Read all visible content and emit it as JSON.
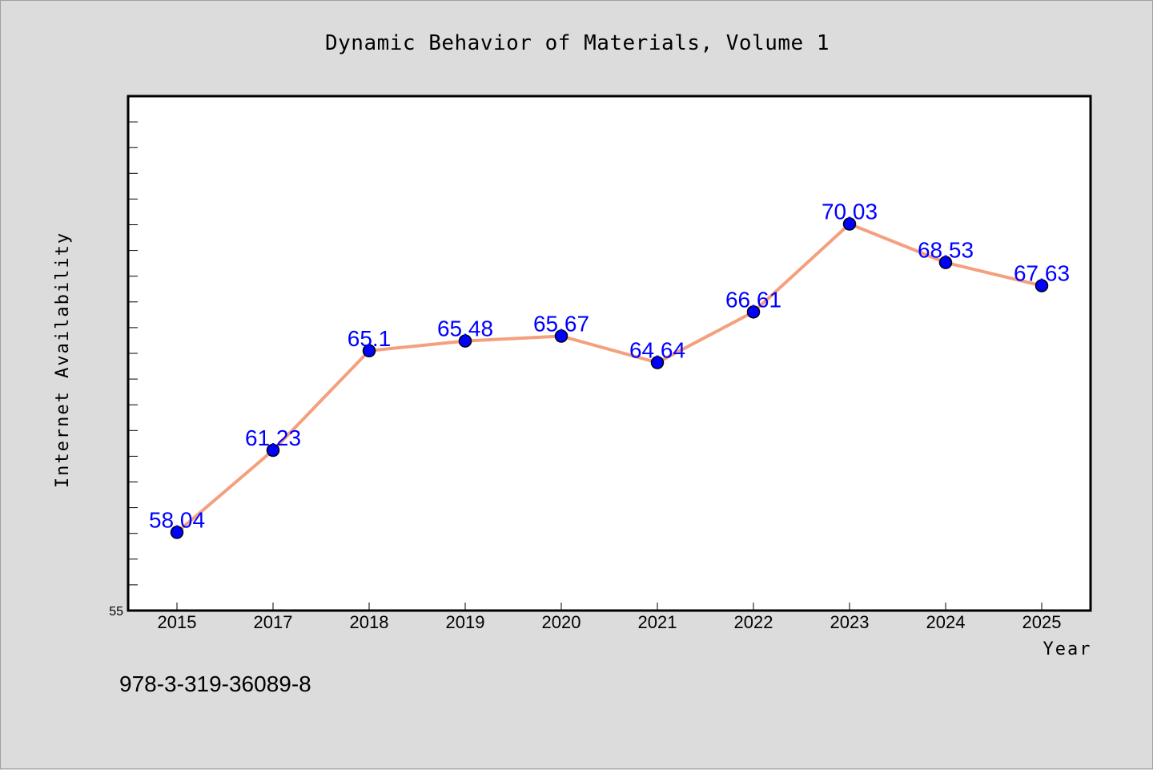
{
  "chart_data": {
    "type": "line",
    "title": "Dynamic Behavior of Materials, Volume 1",
    "xlabel": "Year",
    "ylabel": "Internet Availability",
    "categories": [
      "2015",
      "2017",
      "2018",
      "2019",
      "2020",
      "2021",
      "2022",
      "2023",
      "2024",
      "2025"
    ],
    "series": [
      {
        "values": [
          58.04,
          61.23,
          65.1,
          65.48,
          65.67,
          64.64,
          66.61,
          70.03,
          68.53,
          67.63
        ],
        "labels": [
          "58.04",
          "61.23",
          "65.1",
          "65.48",
          "65.67",
          "64.64",
          "66.61",
          "70.03",
          "68.53",
          "67.63"
        ],
        "line_color": "#f4a07e",
        "marker_color": "#0000ff"
      }
    ],
    "ylim": [
      55,
      75
    ],
    "y_tick_labels": [
      "55"
    ],
    "grid": false,
    "data_label_color": "#0000ff"
  },
  "footnote": "978-3-319-36089-8",
  "colors": {
    "background": "#dcdcdc",
    "plot_background": "#ffffff",
    "line": "#f4a07e",
    "marker": "#0000ff"
  }
}
